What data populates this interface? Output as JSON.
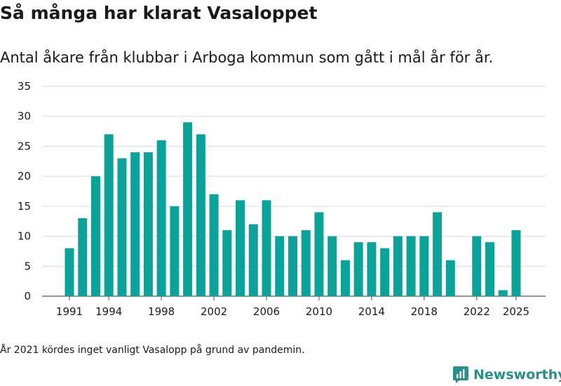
{
  "chart_data": {
    "type": "bar",
    "title": "Så många har klarat Vasaloppet",
    "subtitle": "Antal åkare från klubbar i Arboga kommun som gått i mål år för år.",
    "x": [
      1991,
      1992,
      1993,
      1994,
      1995,
      1996,
      1997,
      1998,
      1999,
      2000,
      2001,
      2002,
      2003,
      2004,
      2005,
      2006,
      2007,
      2008,
      2009,
      2010,
      2011,
      2012,
      2013,
      2014,
      2015,
      2016,
      2017,
      2018,
      2019,
      2020,
      2021,
      2022,
      2023,
      2024,
      2025
    ],
    "values": [
      8,
      13,
      20,
      27,
      23,
      24,
      24,
      26,
      15,
      29,
      27,
      17,
      11,
      16,
      12,
      16,
      10,
      10,
      11,
      14,
      10,
      6,
      9,
      9,
      8,
      10,
      10,
      10,
      14,
      6,
      null,
      10,
      9,
      1,
      11
    ],
    "xticks": [
      "1991",
      "1994",
      "1998",
      "2002",
      "2006",
      "2010",
      "2014",
      "2018",
      "2022",
      "2025"
    ],
    "yticks": [
      "0",
      "5",
      "10",
      "15",
      "20",
      "25",
      "30",
      "35"
    ],
    "ylim": [
      0,
      35
    ],
    "xlabel": "",
    "ylabel": "",
    "bar_color": "#0aa39a",
    "grid": true
  },
  "footnote": "År 2021 kördes inget vanligt Vasalopp på grund av pandemin.",
  "brand": {
    "name": "Newsworthy",
    "icon": "newsworthy-logo-icon",
    "color": "#2a8f8a"
  }
}
